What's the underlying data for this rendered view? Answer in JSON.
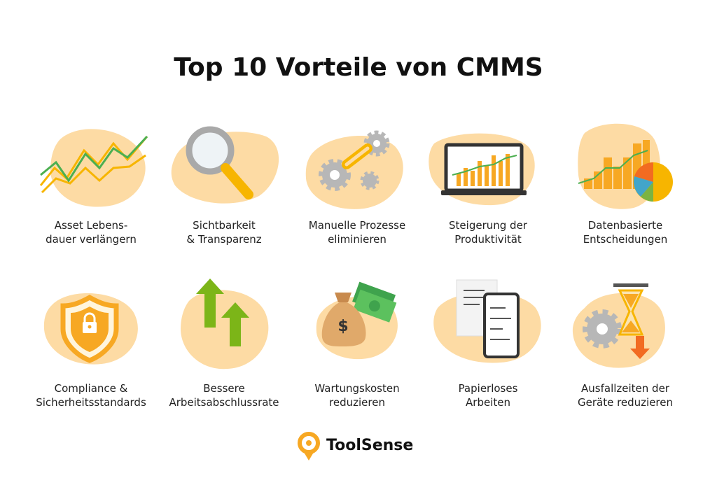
{
  "header": {
    "title": "Top 10 Vorteile von CMMS"
  },
  "items": [
    {
      "lines": [
        "Asset Lebens-",
        "dauer verlängern"
      ]
    },
    {
      "lines": [
        "Sichtbarkeit",
        "& Transparenz"
      ]
    },
    {
      "lines": [
        "Manuelle Prozesse",
        "eliminieren"
      ]
    },
    {
      "lines": [
        "Steigerung der",
        "Produktivität"
      ]
    },
    {
      "lines": [
        "Datenbasierte",
        "Entscheidungen"
      ]
    },
    {
      "lines": [
        "Compliance &",
        "Sicherheitsstandards"
      ]
    },
    {
      "lines": [
        "Bessere",
        "Arbeitsabschlussrate"
      ]
    },
    {
      "lines": [
        "Wartungskosten",
        "reduzieren"
      ]
    },
    {
      "lines": [
        "Papierloses",
        "Arbeiten"
      ]
    },
    {
      "lines": [
        "Ausfallzeiten der",
        "Geräte reduzieren"
      ]
    }
  ],
  "footer": {
    "brand": "ToolSense"
  }
}
